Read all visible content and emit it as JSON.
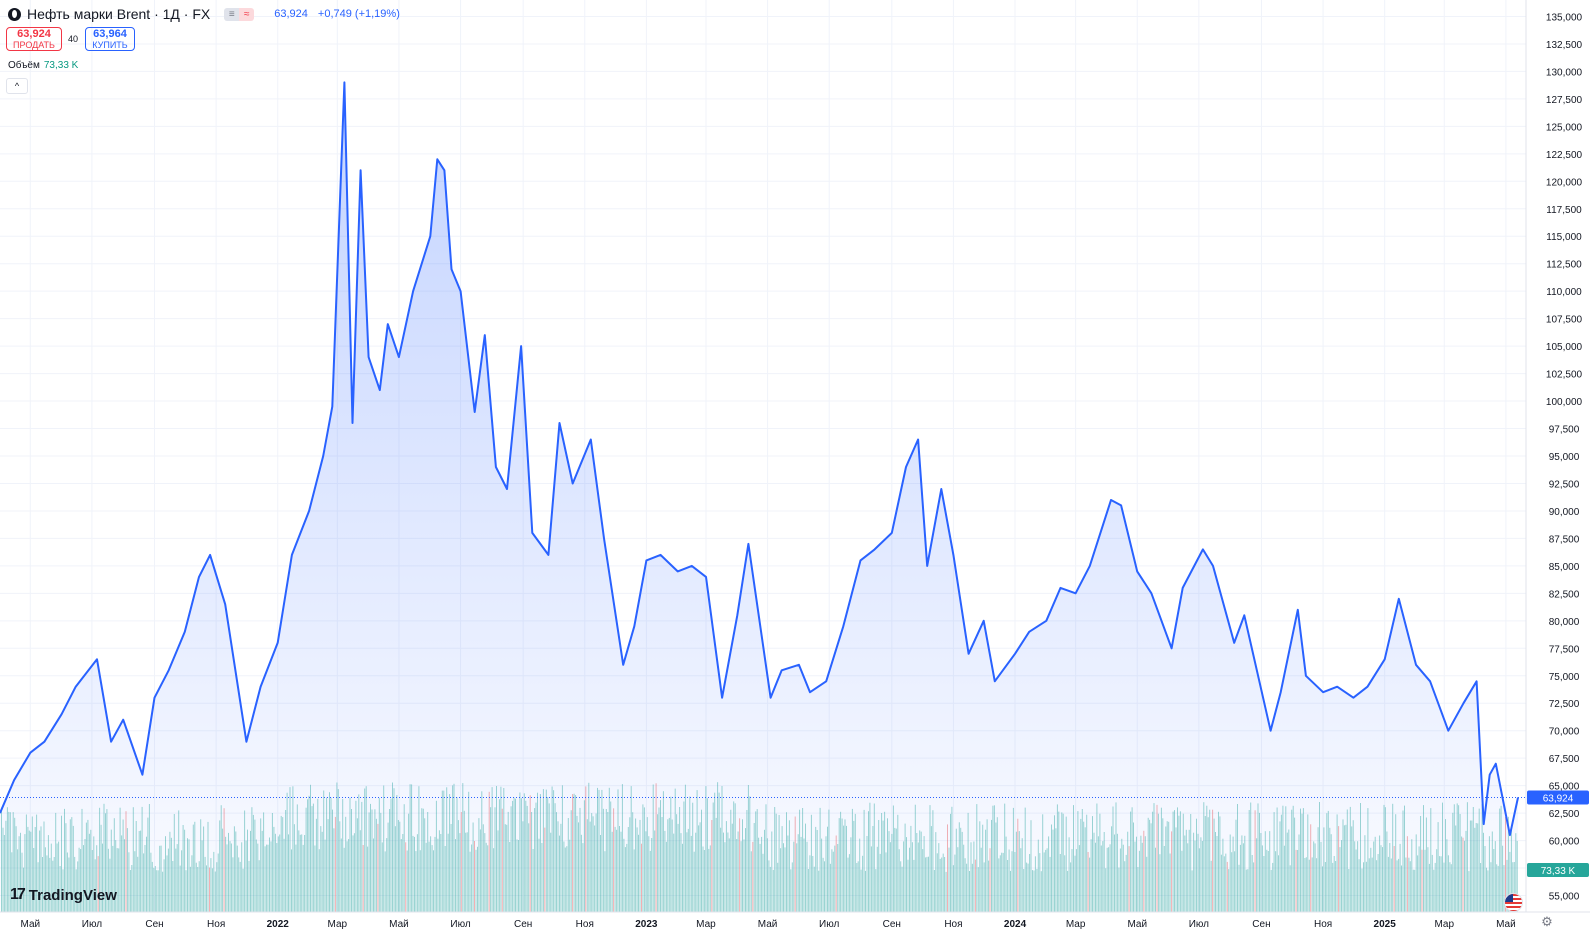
{
  "header": {
    "title": "Нефть марки Brent · 1Д · FX",
    "flag_a": "≡",
    "flag_b": "≈",
    "last_price": "63,924",
    "change": "+0,749 (+1,19%)"
  },
  "trade": {
    "sell_value": "63,924",
    "sell_label": "ПРОДАТЬ",
    "spread": "40",
    "buy_value": "63,964",
    "buy_label": "КУПИТЬ"
  },
  "volume_legend": {
    "label": "Объём",
    "value": "73,33 K"
  },
  "collapse_glyph": "^",
  "brand": {
    "name": "TradingView",
    "mark": "17"
  },
  "colors": {
    "line": "#2962ff",
    "fill": "#2962ff",
    "volume_up": "#26a69a",
    "volume_down": "#ef5350",
    "grid": "#f0f3fa",
    "text": "#131722",
    "price_badge": "#2962ff",
    "volume_badge": "#26a69a"
  },
  "icons": [
    "instrument-logo-icon",
    "collapse-icon",
    "us-flag-icon",
    "settings-icon"
  ],
  "chart_data": {
    "type": "area",
    "title": "Нефть марки Brent · 1Д · FX",
    "xlabel": "",
    "ylabel": "",
    "ylim": [
      53500,
      136500
    ],
    "grid": true,
    "y_ticks": [
      "135,000",
      "132,500",
      "130,000",
      "127,500",
      "125,000",
      "122,500",
      "120,000",
      "117,500",
      "115,000",
      "112,500",
      "110,000",
      "107,500",
      "105,000",
      "102,500",
      "100,000",
      "97,500",
      "95,000",
      "92,500",
      "90,000",
      "87,500",
      "85,000",
      "82,500",
      "80,000",
      "77,500",
      "75,000",
      "72,500",
      "70,000",
      "67,500",
      "65,000",
      "62,500",
      "60,000",
      "57,500",
      "55,000"
    ],
    "x_ticks": [
      "Май",
      "Июл",
      "Сен",
      "Ноя",
      "2022",
      "Мар",
      "Май",
      "Июл",
      "Сен",
      "Ноя",
      "2023",
      "Мар",
      "Май",
      "Июл",
      "Сен",
      "Ноя",
      "2024",
      "Мар",
      "Май",
      "Июл",
      "Сен",
      "Ноя",
      "2025",
      "Мар",
      "Май"
    ],
    "x_tick_months": [
      "2021-05",
      "2021-07",
      "2021-09",
      "2021-11",
      "2022-01",
      "2022-03",
      "2022-05",
      "2022-07",
      "2022-09",
      "2022-11",
      "2023-01",
      "2023-03",
      "2023-05",
      "2023-07",
      "2023-09",
      "2023-11",
      "2024-01",
      "2024-03",
      "2024-05",
      "2024-07",
      "2024-09",
      "2024-11",
      "2025-01",
      "2025-03",
      "2025-05"
    ],
    "x_range": [
      "2021-04-01",
      "2025-05-13"
    ],
    "price_series": {
      "name": "Нефть марки Brent",
      "x": [
        "2021-04-01",
        "2021-04-15",
        "2021-05-01",
        "2021-05-15",
        "2021-06-01",
        "2021-06-15",
        "2021-07-06",
        "2021-07-20",
        "2021-08-01",
        "2021-08-20",
        "2021-09-01",
        "2021-09-15",
        "2021-10-01",
        "2021-10-15",
        "2021-10-26",
        "2021-11-10",
        "2021-12-01",
        "2021-12-15",
        "2022-01-01",
        "2022-01-15",
        "2022-02-01",
        "2022-02-15",
        "2022-02-24",
        "2022-03-08",
        "2022-03-16",
        "2022-03-24",
        "2022-04-01",
        "2022-04-12",
        "2022-04-20",
        "2022-05-01",
        "2022-05-15",
        "2022-06-01",
        "2022-06-08",
        "2022-06-15",
        "2022-06-22",
        "2022-07-01",
        "2022-07-15",
        "2022-07-25",
        "2022-08-05",
        "2022-08-16",
        "2022-08-30",
        "2022-09-10",
        "2022-09-26",
        "2022-10-07",
        "2022-10-20",
        "2022-11-07",
        "2022-11-20",
        "2022-12-09",
        "2022-12-20",
        "2023-01-01",
        "2023-01-15",
        "2023-02-01",
        "2023-02-15",
        "2023-03-01",
        "2023-03-17",
        "2023-04-01",
        "2023-04-12",
        "2023-05-04",
        "2023-05-15",
        "2023-06-01",
        "2023-06-12",
        "2023-06-28",
        "2023-07-15",
        "2023-08-01",
        "2023-08-15",
        "2023-09-01",
        "2023-09-15",
        "2023-09-27",
        "2023-10-06",
        "2023-10-20",
        "2023-11-01",
        "2023-11-16",
        "2023-12-01",
        "2023-12-12",
        "2024-01-01",
        "2024-01-15",
        "2024-02-01",
        "2024-02-15",
        "2024-03-01",
        "2024-03-15",
        "2024-04-05",
        "2024-04-15",
        "2024-05-01",
        "2024-05-15",
        "2024-06-04",
        "2024-06-15",
        "2024-07-05",
        "2024-07-15",
        "2024-08-05",
        "2024-08-15",
        "2024-09-10",
        "2024-09-20",
        "2024-10-07",
        "2024-10-15",
        "2024-11-01",
        "2024-11-15",
        "2024-12-01",
        "2024-12-15",
        "2025-01-01",
        "2025-01-15",
        "2025-02-01",
        "2025-02-15",
        "2025-03-05",
        "2025-03-20",
        "2025-04-02",
        "2025-04-09",
        "2025-04-15",
        "2025-04-21",
        "2025-05-05",
        "2025-05-13"
      ],
      "values": [
        62.5,
        65.5,
        68.0,
        69.0,
        71.5,
        74.0,
        76.5,
        69.0,
        71.0,
        66.0,
        73.0,
        75.5,
        79.0,
        84.0,
        86.0,
        81.5,
        69.0,
        74.0,
        78.0,
        86.0,
        90.0,
        95.0,
        99.5,
        129.0,
        98.0,
        121.0,
        104.0,
        101.0,
        107.0,
        104.0,
        110.0,
        115.0,
        122.0,
        121.0,
        112.0,
        110.0,
        99.0,
        106.0,
        94.0,
        92.0,
        105.0,
        88.0,
        86.0,
        98.0,
        92.5,
        96.5,
        87.5,
        76.0,
        79.5,
        85.5,
        86.0,
        84.5,
        85.0,
        84.0,
        73.0,
        80.5,
        87.0,
        73.0,
        75.5,
        76.0,
        73.5,
        74.5,
        79.5,
        85.5,
        86.5,
        88.0,
        94.0,
        96.5,
        85.0,
        92.0,
        86.0,
        77.0,
        80.0,
        74.5,
        77.0,
        79.0,
        80.0,
        83.0,
        82.5,
        85.0,
        91.0,
        90.5,
        84.5,
        82.5,
        77.5,
        83.0,
        86.5,
        85.0,
        78.0,
        80.5,
        70.0,
        73.5,
        81.0,
        75.0,
        73.5,
        74.0,
        73.0,
        74.0,
        76.5,
        82.0,
        76.0,
        74.5,
        70.0,
        72.5,
        74.5,
        61.5,
        66.0,
        67.0,
        60.5,
        63.924
      ]
    },
    "volume_series": {
      "name": "Объём",
      "note_visible_values": [
        "73,33 K"
      ]
    },
    "last_value_label": "63,924",
    "last_volume_label": "73,33 K"
  }
}
